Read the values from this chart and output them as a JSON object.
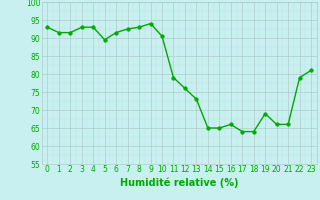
{
  "x": [
    0,
    1,
    2,
    3,
    4,
    5,
    6,
    7,
    8,
    9,
    10,
    11,
    12,
    13,
    14,
    15,
    16,
    17,
    18,
    19,
    20,
    21,
    22,
    23
  ],
  "y": [
    93,
    91.5,
    91.5,
    93,
    93,
    89.5,
    91.5,
    92.5,
    93,
    94,
    90.5,
    79,
    76,
    73,
    65,
    65,
    66,
    64,
    64,
    69,
    66,
    66,
    79,
    81
  ],
  "line_color": "#00aa00",
  "marker_color": "#00aa00",
  "bg_color": "#c8f0f0",
  "grid_major_color": "#b0cccc",
  "grid_minor_color": "#c0dede",
  "xlabel": "Humidité relative (%)",
  "xlabel_color": "#00aa00",
  "ylim": [
    55,
    100
  ],
  "xlim": [
    -0.5,
    23.5
  ],
  "yticks": [
    55,
    60,
    65,
    70,
    75,
    80,
    85,
    90,
    95,
    100
  ],
  "xticks": [
    0,
    1,
    2,
    3,
    4,
    5,
    6,
    7,
    8,
    9,
    10,
    11,
    12,
    13,
    14,
    15,
    16,
    17,
    18,
    19,
    20,
    21,
    22,
    23
  ],
  "tick_label_color": "#00aa00",
  "tick_label_size": 5.5,
  "xlabel_size": 7.0,
  "line_width": 1.0,
  "marker_size": 2.5
}
